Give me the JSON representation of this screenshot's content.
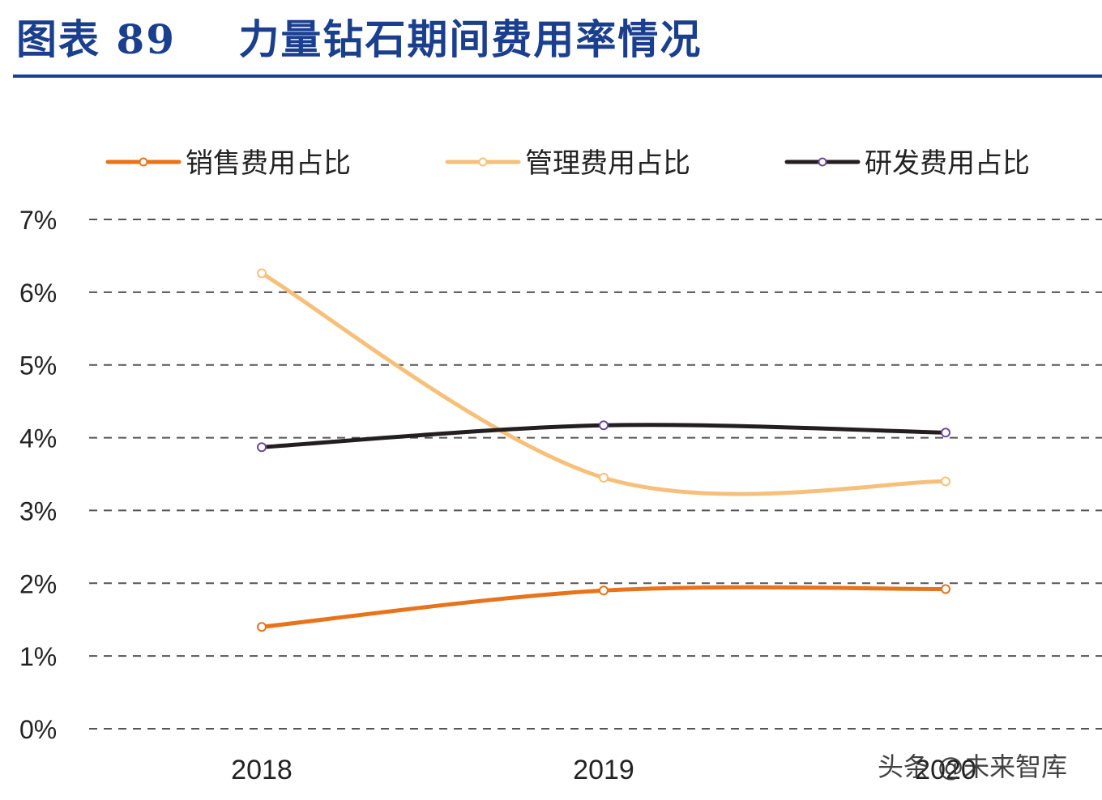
{
  "header": {
    "figure_label": "图表",
    "figure_number": "89",
    "title": "力量钻石期间费用率情况"
  },
  "watermark": "头条 @未来智库",
  "colors": {
    "title": "#1b3f8f",
    "grid": "#555555",
    "zero_tick": "#e0161e"
  },
  "chart_data": {
    "type": "line",
    "title": "力量钻石期间费用率情况",
    "xlabel": "",
    "ylabel": "",
    "categories": [
      "2018",
      "2019",
      "2020"
    ],
    "ylim": [
      0,
      7
    ],
    "yticks": [
      0,
      1,
      2,
      3,
      4,
      5,
      6,
      7
    ],
    "ytick_labels": [
      "0%",
      "1%",
      "2%",
      "3%",
      "4%",
      "5%",
      "6%",
      "7%"
    ],
    "grid": true,
    "legend_position": "top",
    "smooth": true,
    "series": [
      {
        "name": "销售费用占比",
        "color": "#e8731a",
        "values": [
          1.4,
          1.9,
          1.92
        ]
      },
      {
        "name": "管理费用占比",
        "color": "#f7c07a",
        "values": [
          6.26,
          3.45,
          3.4
        ]
      },
      {
        "name": "研发费用占比",
        "color": "#231f20",
        "values": [
          3.87,
          4.17,
          4.07
        ]
      }
    ]
  }
}
